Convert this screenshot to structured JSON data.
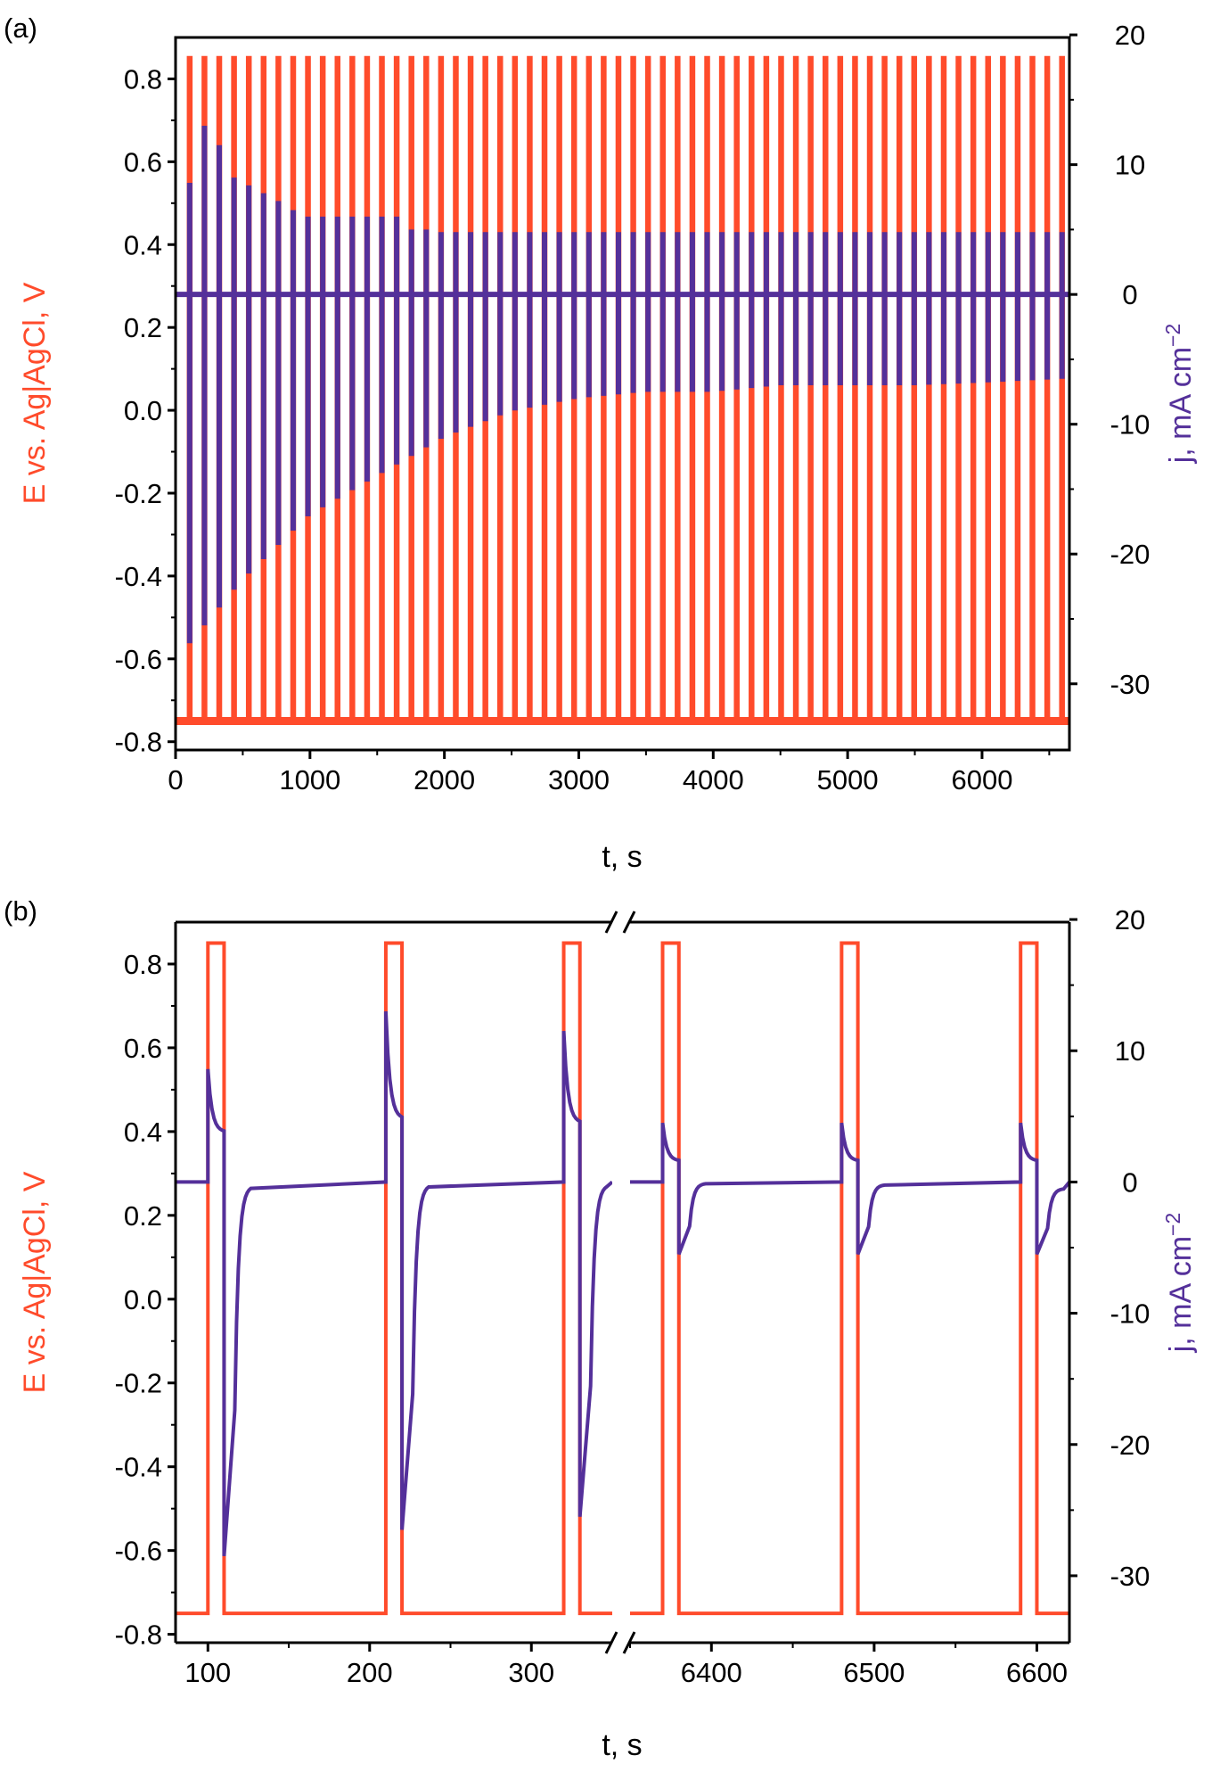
{
  "colors": {
    "potential": "#ff4b2b",
    "current": "#54309a",
    "axis": "#000000",
    "background": "#ffffff"
  },
  "chart_data": [
    {
      "panel_label": "(a)",
      "type": "line",
      "xlabel": "t, s",
      "ylabel_left": "E vs. Ag|AgCl, V",
      "ylabel_right_prefix": "j, mA cm",
      "ylabel_right_sup": "−2",
      "xlim": [
        0,
        6650
      ],
      "ylim_left": [
        -0.82,
        0.9
      ],
      "ylim_right": [
        -35.1,
        19.8
      ],
      "x_ticks": [
        0,
        1000,
        2000,
        3000,
        4000,
        5000,
        6000
      ],
      "x_tick_labels": [
        "0",
        "1000",
        "2000",
        "3000",
        "4000",
        "5000",
        "6000"
      ],
      "y_left_ticks": [
        -0.8,
        -0.6,
        -0.4,
        -0.2,
        0.0,
        0.2,
        0.4,
        0.6,
        0.8
      ],
      "y_left_tick_labels": [
        "-0.8",
        "-0.6",
        "-0.4",
        "-0.2",
        "0.0",
        "0.2",
        "0.4",
        "0.6",
        "0.8"
      ],
      "y_right_ticks": [
        -30,
        -20,
        -10,
        0,
        10,
        20
      ],
      "y_right_tick_labels": [
        "-30",
        "-20",
        "-10",
        "0",
        "10",
        "20"
      ],
      "period_s": 110,
      "pulse_start_offset_s": 100,
      "pulse_duration_s": 10,
      "n_pulses": 60,
      "series": [
        {
          "name": "E (potential)",
          "axis": "left",
          "base_value": -0.75,
          "pulse_value": 0.85,
          "pulse_end_values_x": [
            100,
            500,
            1000,
            1500,
            2000,
            2500,
            3000,
            3500,
            4000,
            4500,
            5000,
            5500,
            6000,
            6600
          ],
          "pulse_end_values_y": [
            -0.58,
            -0.43,
            -0.32,
            -0.22,
            -0.14,
            -0.08,
            -0.04,
            -0.01,
            0.01,
            0.03,
            0.04,
            0.05,
            0.055,
            0.06
          ]
        },
        {
          "name": "j (current density)",
          "axis": "right",
          "base_value": 0,
          "peak_values": [
            8.6,
            13,
            11.5,
            9,
            8.4,
            7.8,
            7.2,
            6.5,
            6,
            6,
            6,
            6,
            6,
            6,
            6,
            5,
            5
          ],
          "peak_values_tail": 4.8,
          "cathodic_minima_x": [
            100,
            500,
            1000,
            1500,
            2000,
            2500,
            3000,
            3500,
            4000,
            4500,
            5000,
            5500,
            6000,
            6600
          ],
          "cathodic_minima_y": [
            -27,
            -22,
            -17,
            -14,
            -11,
            -9,
            -8,
            -7.5,
            -7.5,
            -7,
            -7,
            -7,
            -6.8,
            -6.5
          ]
        }
      ]
    },
    {
      "panel_label": "(b)",
      "type": "line",
      "xlabel": "t, s",
      "ylabel_left": "E vs. Ag|AgCl, V",
      "ylabel_right_prefix": "j, mA cm",
      "ylabel_right_sup": "−2",
      "axis_break": true,
      "segments": [
        {
          "xlim": [
            80,
            350
          ]
        },
        {
          "xlim": [
            6350,
            6620
          ]
        }
      ],
      "ylim_left": [
        -0.82,
        0.9
      ],
      "ylim_right": [
        -35.1,
        19.8
      ],
      "x_ticks": [
        100,
        200,
        300,
        6400,
        6500,
        6600
      ],
      "x_tick_labels": [
        "100",
        "200",
        "300",
        "6400",
        "6500",
        "6600"
      ],
      "y_left_ticks": [
        -0.8,
        -0.6,
        -0.4,
        -0.2,
        0.0,
        0.2,
        0.4,
        0.6,
        0.8
      ],
      "y_left_tick_labels": [
        "-0.8",
        "-0.6",
        "-0.4",
        "-0.2",
        "0.0",
        "0.2",
        "0.4",
        "0.6",
        "0.8"
      ],
      "y_right_ticks": [
        -30,
        -20,
        -10,
        0,
        10,
        20
      ],
      "y_right_tick_labels": [
        "-30",
        "-20",
        "-10",
        "0",
        "10",
        "20"
      ],
      "pulses": [
        {
          "start": 100,
          "end": 110,
          "e_end": -0.62,
          "j_peak": 8.6,
          "j_pre_end": 3.8,
          "j_min": -28.5,
          "j_relax": -0.3
        },
        {
          "start": 210,
          "end": 220,
          "e_end": -0.57,
          "j_peak": 13,
          "j_pre_end": 4.8,
          "j_min": -26.5,
          "j_relax": -0.2
        },
        {
          "start": 320,
          "end": 330,
          "e_end": -0.53,
          "j_peak": 11.5,
          "j_pre_end": 4.5,
          "j_min": -25.5,
          "j_relax": -0.2
        },
        {
          "start": 6370,
          "end": 6380,
          "e_end": 0.04,
          "j_peak": 4.5,
          "j_pre_end": 1.6,
          "j_min": -5.5,
          "j_relax": -0.1
        },
        {
          "start": 6480,
          "end": 6490,
          "e_end": 0.04,
          "j_peak": 4.5,
          "j_pre_end": 1.6,
          "j_min": -5.5,
          "j_relax": -0.2
        },
        {
          "start": 6590,
          "end": 6600,
          "e_end": 0.04,
          "j_peak": 4.5,
          "j_pre_end": 1.6,
          "j_min": -5.5,
          "j_relax": -0.5
        }
      ],
      "e_base": -0.75,
      "e_pulse": 0.85
    }
  ]
}
